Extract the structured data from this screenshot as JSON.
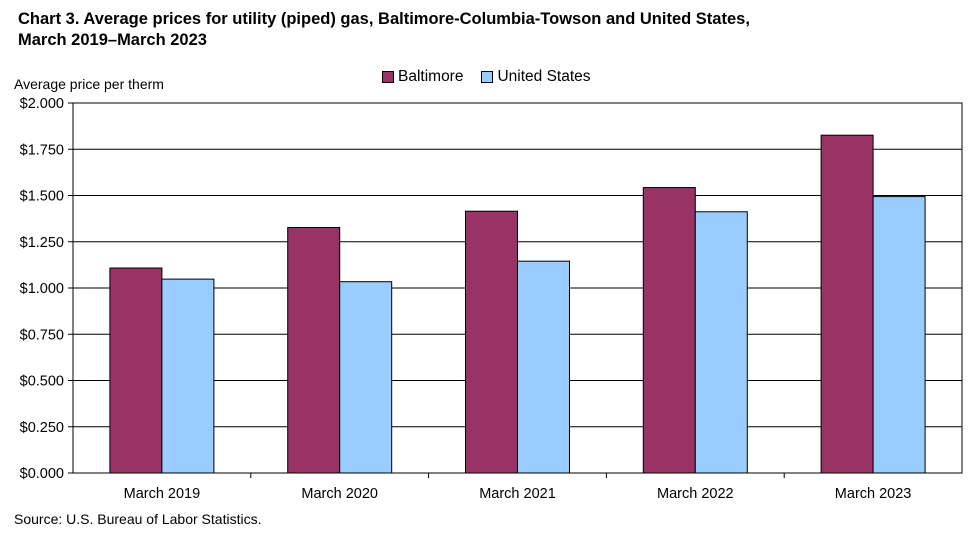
{
  "title_line1": "Chart 3. Average prices for utility (piped) gas, Baltimore-Columbia-Towson and United States,",
  "title_line2": "March 2019–March 2023",
  "source": "Source: U.S. Bureau of Labor Statistics.",
  "chart_data": {
    "type": "bar",
    "title": "Chart 3. Average prices for utility (piped) gas, Baltimore-Columbia-Towson and United States, March 2019–March 2023",
    "xlabel": "",
    "ylabel": "Average price per therm",
    "categories": [
      "March 2019",
      "March 2020",
      "March 2021",
      "March 2022",
      "March 2023"
    ],
    "series": [
      {
        "name": "Baltimore",
        "color": "#993366",
        "values": [
          1.108,
          1.327,
          1.415,
          1.543,
          1.826
        ]
      },
      {
        "name": "United States",
        "color": "#99ccff",
        "values": [
          1.048,
          1.034,
          1.145,
          1.412,
          1.494
        ]
      }
    ],
    "ylim": [
      0,
      2.0
    ],
    "yticks": [
      "$0.000",
      "$0.250",
      "$0.500",
      "$0.750",
      "$1.000",
      "$1.250",
      "$1.500",
      "$1.750",
      "$2.000"
    ],
    "grid": true,
    "legend_position": "top-center"
  }
}
